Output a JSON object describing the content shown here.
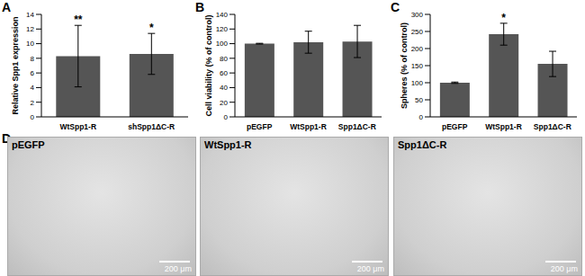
{
  "chart_data": [
    {
      "type": "bar",
      "panel_label": "A",
      "y_label": "Relative Spp1 expression",
      "categories": [
        "WtSpp1-R",
        "shSpp1ΔC-R"
      ],
      "values": [
        8.3,
        8.6
      ],
      "errors": [
        4.2,
        2.8
      ],
      "annotations": [
        "**",
        "*"
      ],
      "color": "#555555",
      "ylim": [
        0,
        14
      ],
      "yticks": [
        0,
        2,
        4,
        6,
        8,
        10,
        12,
        14
      ],
      "grid": false
    },
    {
      "type": "bar",
      "panel_label": "B",
      "y_label": "Cell viability (% of control)",
      "categories": [
        "pEGFP",
        "WtSpp1-R",
        "Spp1ΔC-R"
      ],
      "values": [
        100,
        102,
        103
      ],
      "errors": [
        0.5,
        15,
        22
      ],
      "annotations": [
        null,
        null,
        null
      ],
      "color": "#555555",
      "ylim": [
        0,
        140
      ],
      "yticks": [
        0,
        20,
        40,
        60,
        80,
        100,
        120,
        140
      ],
      "grid": false
    },
    {
      "type": "bar",
      "panel_label": "C",
      "y_label": "Spheres (% of control)",
      "categories": [
        "pEGFP",
        "WtSpp1-R",
        "Spp1ΔC-R"
      ],
      "values": [
        100,
        242,
        155
      ],
      "errors": [
        2,
        32,
        37
      ],
      "annotations": [
        null,
        "*",
        null
      ],
      "color": "#555555",
      "ylim": [
        0,
        300
      ],
      "yticks": [
        0,
        50,
        100,
        150,
        200,
        250,
        300
      ],
      "grid": false
    }
  ],
  "image_panel": {
    "panel_label": "D",
    "images": [
      {
        "title": "pEGFP",
        "scale_bar": "200 μm"
      },
      {
        "title": "WtSpp1-R",
        "scale_bar": "200 μm"
      },
      {
        "title": "Spp1ΔC-R",
        "scale_bar": "200 μm"
      }
    ]
  }
}
